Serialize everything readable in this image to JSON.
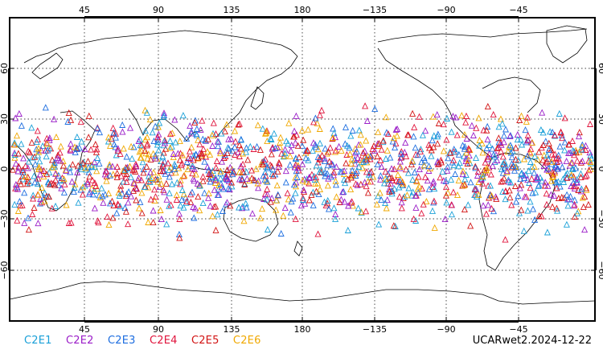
{
  "plot": {
    "top_lon_ticks": [
      "45",
      "90",
      "135",
      "180",
      "−135",
      "−90",
      "−45"
    ],
    "bottom_lon_ticks": [
      "45",
      "90",
      "135",
      "180",
      "−135",
      "−90",
      "−45"
    ],
    "left_lat_ticks": [
      "60",
      "30",
      "0",
      "−30",
      "−60"
    ],
    "right_lat_ticks": [
      "60",
      "30",
      "0",
      "−30",
      "−60"
    ],
    "marker_symbol": "triangle-open",
    "observation_band_latitude": [
      -45,
      45
    ]
  },
  "legend": {
    "items": [
      {
        "label": "C2E1",
        "color": "#1aa0d8"
      },
      {
        "label": "C2E2",
        "color": "#9b1ec8"
      },
      {
        "label": "C2E3",
        "color": "#1e6ee0"
      },
      {
        "label": "C2E4",
        "color": "#e0143c"
      },
      {
        "label": "C2E5",
        "color": "#d21414"
      },
      {
        "label": "C2E6",
        "color": "#f0a800"
      }
    ]
  },
  "footer": {
    "dataset_label": "UCARwet2.2024-12-22"
  }
}
